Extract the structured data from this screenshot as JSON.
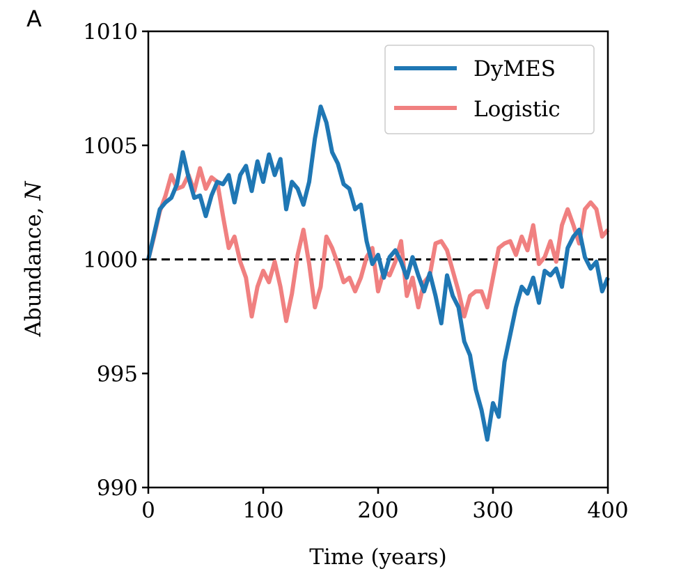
{
  "chart_data": {
    "type": "line",
    "panel_label": "A",
    "title": "",
    "xlabel": "Time (years)",
    "ylabel": "Abundance, ",
    "ylabel_italic": "N",
    "xlim": [
      0,
      400
    ],
    "ylim": [
      990,
      1010
    ],
    "xticks": [
      0,
      100,
      200,
      300,
      400
    ],
    "yticks": [
      990,
      995,
      1000,
      1005,
      1010
    ],
    "xtick_labels": [
      "0",
      "100",
      "200",
      "300",
      "400"
    ],
    "ytick_labels": [
      "990",
      "995",
      "1000",
      "1005",
      "1010"
    ],
    "grid": false,
    "legend_position": "top-right",
    "reference_line": {
      "y": 1000,
      "style": "dashed",
      "color": "#000000"
    },
    "x": [
      0,
      5,
      10,
      15,
      20,
      25,
      30,
      35,
      40,
      45,
      50,
      55,
      60,
      65,
      70,
      75,
      80,
      85,
      90,
      95,
      100,
      105,
      110,
      115,
      120,
      125,
      130,
      135,
      140,
      145,
      150,
      155,
      160,
      165,
      170,
      175,
      180,
      185,
      190,
      195,
      200,
      205,
      210,
      215,
      220,
      225,
      230,
      235,
      240,
      245,
      250,
      255,
      260,
      265,
      270,
      275,
      280,
      285,
      290,
      295,
      300,
      305,
      310,
      315,
      320,
      325,
      330,
      335,
      340,
      345,
      350,
      355,
      360,
      365,
      370,
      375,
      380,
      385,
      390,
      395,
      400
    ],
    "series": [
      {
        "name": "DyMES",
        "color": "#1f77b4",
        "values": [
          1000,
          1001.1,
          1002.2,
          1002.5,
          1002.7,
          1003.3,
          1004.7,
          1003.6,
          1002.7,
          1002.8,
          1001.9,
          1002.8,
          1003.4,
          1003.3,
          1003.7,
          1002.5,
          1003.7,
          1004.1,
          1003,
          1004.3,
          1003.4,
          1004.6,
          1003.7,
          1004.4,
          1002.2,
          1003.4,
          1003.1,
          1002.4,
          1003.4,
          1005.3,
          1006.7,
          1006,
          1004.7,
          1004.2,
          1003.3,
          1003.1,
          1002.2,
          1002.4,
          1000.8,
          999.8,
          1000.2,
          999.2,
          1000.1,
          1000.4,
          999.9,
          999.2,
          1000.1,
          999.3,
          998.6,
          999.4,
          998.4,
          997.2,
          999.3,
          998.4,
          997.9,
          996.4,
          995.8,
          994.3,
          993.4,
          992.1,
          993.7,
          993.1,
          995.5,
          996.7,
          997.9,
          998.8,
          998.5,
          999.2,
          998.1,
          999.5,
          999.3,
          999.6,
          998.8,
          1000.5,
          1001,
          1001.3,
          1000.1,
          999.6,
          999.9,
          998.6,
          999.2
        ]
      },
      {
        "name": "Logistic",
        "color": "#f08080",
        "values": [
          1000,
          1001,
          1002.1,
          1002.8,
          1003.7,
          1003.1,
          1003.2,
          1003.7,
          1003,
          1004,
          1003.1,
          1003.6,
          1003.4,
          1001.9,
          1000.5,
          1001,
          999.9,
          999.2,
          997.5,
          998.8,
          999.5,
          999,
          999.9,
          998.8,
          997.3,
          998.5,
          1000.2,
          1001.3,
          999.8,
          997.9,
          998.8,
          1001,
          1000.5,
          999.8,
          999,
          999.2,
          998.6,
          999.2,
          1000.1,
          1000.5,
          998.6,
          999.5,
          999.3,
          999.9,
          1000.8,
          998.4,
          999.2,
          997.9,
          999,
          999.3,
          1000.7,
          1000.8,
          1000.4,
          999.5,
          998.6,
          997.5,
          998.4,
          998.6,
          998.6,
          997.9,
          999.2,
          1000.5,
          1000.7,
          1000.8,
          1000.2,
          1001,
          1000.4,
          1001.5,
          999.8,
          1000.1,
          1000.8,
          999.9,
          1001.5,
          1002.2,
          1001.5,
          1000.7,
          1002.2,
          1002.5,
          1002.2,
          1001,
          1001.3
        ]
      }
    ]
  }
}
